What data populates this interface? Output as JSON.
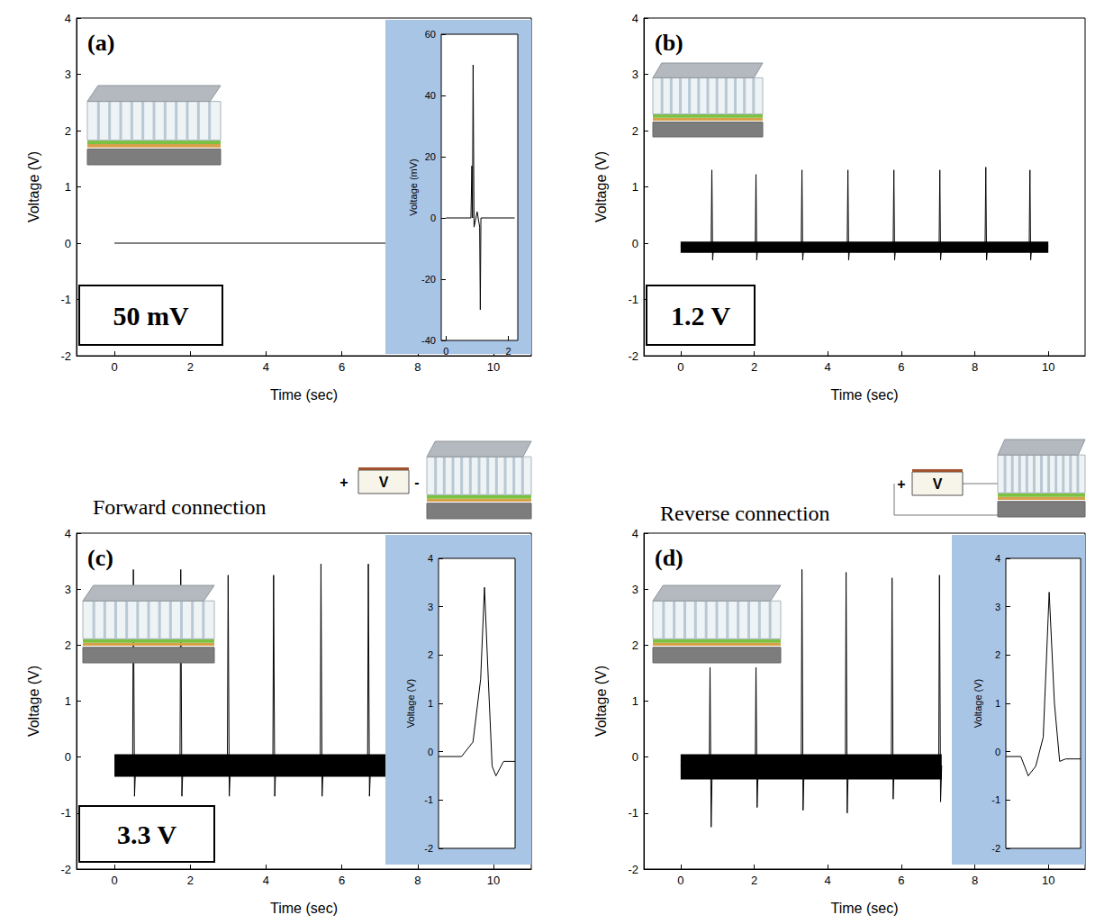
{
  "chart_data": [
    {
      "type": "line",
      "panel_label": "(a)",
      "annotation": "50 mV",
      "x_label": "Time (sec)",
      "y_label": "Voltage (V)",
      "xlim": [
        -1,
        11
      ],
      "xticks": [
        0,
        2,
        4,
        6,
        8,
        10
      ],
      "ylim": [
        -2,
        4
      ],
      "yticks": [
        -2,
        -1,
        0,
        1,
        2,
        3,
        4
      ],
      "grid": false,
      "color": "#000000",
      "x": [
        0,
        7.2
      ],
      "values": [
        0,
        0
      ],
      "inset": {
        "type": "line",
        "y_label": "Voltage (mV)",
        "xlim": [
          -0.15,
          2.3
        ],
        "xticks": [
          0,
          2
        ],
        "ylim": [
          -40,
          60
        ],
        "yticks": [
          -40,
          -20,
          0,
          20,
          40,
          60
        ],
        "color": "#000000",
        "x": [
          0,
          0.8,
          0.83,
          0.85,
          0.87,
          0.9,
          1.0,
          1.08,
          1.1,
          1.12,
          2.2
        ],
        "values": [
          0,
          0,
          17,
          0,
          50,
          -3,
          2,
          -3,
          -30,
          0,
          0
        ],
        "noise_band": [
          -1.5,
          1.5
        ]
      }
    },
    {
      "type": "line",
      "panel_label": "(b)",
      "annotation": "1.2 V",
      "x_label": "Time (sec)",
      "y_label": "Voltage (V)",
      "xlim": [
        -1,
        11
      ],
      "xticks": [
        0,
        2,
        4,
        6,
        8,
        10
      ],
      "ylim": [
        -2,
        4
      ],
      "yticks": [
        -2,
        -1,
        0,
        1,
        2,
        3,
        4
      ],
      "grid": false,
      "color": "#000000",
      "x": [
        0,
        0.83,
        0.85,
        0.87,
        0.9,
        2.03,
        2.05,
        2.07,
        2.1,
        3.28,
        3.3,
        3.32,
        3.35,
        4.53,
        4.55,
        4.57,
        4.6,
        5.78,
        5.8,
        5.82,
        5.85,
        7.03,
        7.05,
        7.07,
        7.1,
        8.28,
        8.3,
        8.32,
        8.35,
        9.48,
        9.5,
        9.52,
        9.55,
        10
      ],
      "values": [
        -0.05,
        -0.05,
        1.3,
        -0.3,
        -0.05,
        -0.05,
        1.22,
        -0.3,
        -0.05,
        -0.05,
        1.3,
        -0.3,
        -0.05,
        -0.05,
        1.3,
        -0.3,
        -0.05,
        -0.05,
        1.3,
        -0.3,
        -0.05,
        -0.05,
        1.3,
        -0.3,
        -0.05,
        -0.05,
        1.35,
        -0.3,
        -0.05,
        -0.05,
        1.3,
        -0.3,
        -0.05,
        -0.05
      ],
      "noise_band": [
        -0.17,
        0.03
      ]
    },
    {
      "type": "line",
      "panel_label": "(c)",
      "annotation": "3.3 V",
      "title": "Forward connection",
      "circuit_labels": [
        "+",
        "V",
        "-"
      ],
      "x_label": "Time (sec)",
      "y_label": "Voltage (V)",
      "xlim": [
        -1,
        11
      ],
      "xticks": [
        0,
        2,
        4,
        6,
        8,
        10
      ],
      "ylim": [
        -2,
        4
      ],
      "yticks": [
        -2,
        -1,
        0,
        1,
        2,
        3,
        4
      ],
      "grid": false,
      "color": "#000000",
      "x": [
        0,
        0.48,
        0.5,
        0.53,
        0.56,
        1.73,
        1.75,
        1.78,
        1.81,
        2.98,
        3.0,
        3.03,
        3.06,
        4.18,
        4.2,
        4.23,
        4.26,
        5.43,
        5.45,
        5.48,
        5.51,
        6.68,
        6.7,
        6.73,
        6.76,
        7.2
      ],
      "values": [
        -0.15,
        -0.15,
        3.35,
        -0.7,
        -0.15,
        -0.15,
        3.35,
        -0.7,
        -0.15,
        -0.15,
        3.25,
        -0.7,
        -0.15,
        -0.15,
        3.25,
        -0.7,
        -0.15,
        -0.15,
        3.45,
        -0.7,
        -0.15,
        -0.15,
        3.45,
        -0.7,
        -0.15,
        -0.15
      ],
      "noise_band": [
        -0.35,
        0.05
      ],
      "inset": {
        "type": "line",
        "y_label": "Voltage (V)",
        "tick_labels": "y",
        "xlim": [
          0,
          1
        ],
        "ylim": [
          -2,
          4
        ],
        "yticks": [
          -2,
          -1,
          0,
          1,
          2,
          3,
          4
        ],
        "color": "#000000",
        "x": [
          0,
          0.3,
          0.45,
          0.55,
          0.6,
          0.65,
          0.7,
          0.75,
          0.85,
          1
        ],
        "values": [
          -0.1,
          -0.1,
          0.2,
          1.5,
          3.4,
          1.5,
          -0.3,
          -0.5,
          -0.2,
          -0.2
        ]
      }
    },
    {
      "type": "line",
      "panel_label": "(d)",
      "title": "Reverse connection",
      "circuit_labels": [
        "+",
        "V"
      ],
      "x_label": "Time (sec)",
      "y_label": "Voltage (V)",
      "xlim": [
        -1,
        11
      ],
      "xticks": [
        0,
        2,
        4,
        6,
        8,
        10
      ],
      "ylim": [
        -2,
        4
      ],
      "yticks": [
        -2,
        -1,
        0,
        1,
        2,
        3,
        4
      ],
      "grid": false,
      "color": "#000000",
      "x": [
        0,
        0.78,
        0.8,
        0.83,
        0.86,
        2.03,
        2.05,
        2.08,
        2.11,
        3.28,
        3.3,
        3.33,
        3.36,
        4.48,
        4.5,
        4.53,
        4.56,
        5.73,
        5.75,
        5.78,
        5.81,
        7.02,
        7.04,
        7.07,
        7.1
      ],
      "values": [
        -0.15,
        -0.15,
        1.6,
        -1.25,
        -0.15,
        -0.15,
        1.6,
        -0.9,
        -0.15,
        -0.15,
        3.35,
        -0.95,
        -0.15,
        -0.15,
        3.3,
        -1.0,
        -0.15,
        -0.15,
        3.2,
        -0.75,
        -0.15,
        -0.15,
        3.25,
        -0.8,
        -0.15
      ],
      "noise_band": [
        -0.4,
        0.05
      ],
      "inset": {
        "type": "line",
        "y_label": "Voltage (V)",
        "tick_labels": "y",
        "xlim": [
          0,
          1
        ],
        "ylim": [
          -2,
          4
        ],
        "yticks": [
          -2,
          -1,
          0,
          1,
          2,
          3,
          4
        ],
        "color": "#000000",
        "x": [
          0,
          0.2,
          0.3,
          0.4,
          0.5,
          0.58,
          0.65,
          0.72,
          0.8,
          1
        ],
        "values": [
          -0.1,
          -0.1,
          -0.5,
          -0.3,
          0.3,
          3.3,
          1.0,
          -0.2,
          -0.15,
          -0.15
        ]
      }
    }
  ]
}
